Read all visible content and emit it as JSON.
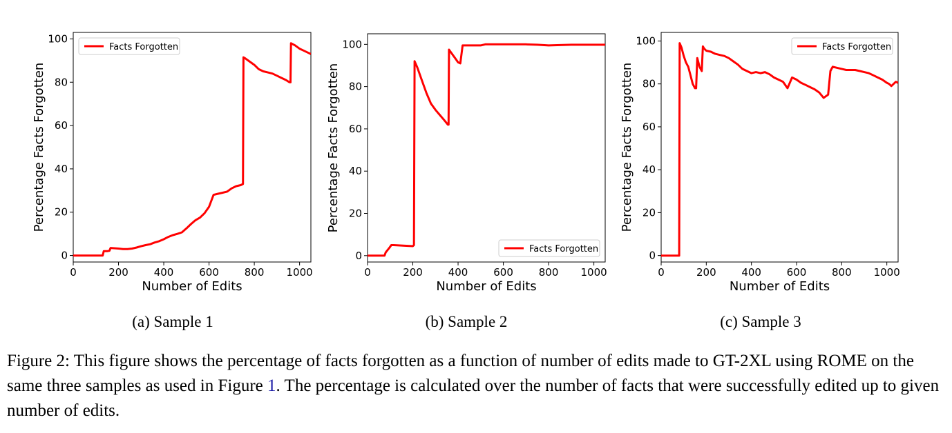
{
  "chart_data": [
    {
      "type": "line",
      "subcaption": "(a) Sample 1",
      "xlabel": "Number of Edits",
      "ylabel": "Percentage Facts Forgotten",
      "xlim": [
        0,
        1050
      ],
      "ylim": [
        -3,
        103
      ],
      "xticks": [
        0,
        200,
        400,
        600,
        800,
        1000
      ],
      "yticks": [
        0,
        20,
        40,
        60,
        80,
        100
      ],
      "legend_position": "top-left",
      "series": [
        {
          "name": "Facts Forgotten",
          "color": "#ff0000",
          "x": [
            0,
            130,
            135,
            150,
            160,
            165,
            200,
            220,
            240,
            260,
            280,
            300,
            320,
            340,
            360,
            380,
            400,
            420,
            440,
            460,
            480,
            500,
            520,
            540,
            560,
            580,
            600,
            620,
            640,
            660,
            680,
            700,
            720,
            740,
            750,
            752,
            760,
            780,
            800,
            820,
            840,
            860,
            880,
            900,
            920,
            940,
            955,
            960,
            962,
            980,
            1000,
            1020,
            1040,
            1050
          ],
          "y": [
            0,
            0,
            2,
            2,
            2.2,
            3.5,
            3.2,
            3.0,
            3.0,
            3.2,
            3.7,
            4.3,
            4.8,
            5.2,
            6.0,
            6.6,
            7.5,
            8.6,
            9.4,
            10.0,
            10.7,
            12.5,
            14.5,
            16.3,
            17.5,
            19.5,
            22.5,
            28,
            28.5,
            29,
            29.5,
            31,
            32,
            32.5,
            33,
            91.5,
            91,
            89.5,
            88,
            86,
            85,
            84.5,
            84,
            83,
            82,
            81,
            80,
            80,
            98,
            97,
            95.5,
            94.5,
            93.5,
            93
          ]
        }
      ]
    },
    {
      "type": "line",
      "subcaption": "(b) Sample 2",
      "xlabel": "Number of Edits",
      "ylabel": "Percentage Facts Forgotten",
      "xlim": [
        0,
        1050
      ],
      "ylim": [
        -3,
        105
      ],
      "xticks": [
        0,
        200,
        400,
        600,
        800,
        1000
      ],
      "yticks": [
        0,
        20,
        40,
        60,
        80,
        100
      ],
      "legend_position": "lower-right",
      "series": [
        {
          "name": "Facts Forgotten",
          "color": "#ff0000",
          "x": [
            0,
            75,
            80,
            95,
            105,
            115,
            200,
            205,
            208,
            220,
            240,
            260,
            280,
            300,
            320,
            340,
            355,
            358,
            360,
            370,
            390,
            400,
            410,
            420,
            450,
            480,
            500,
            520,
            600,
            700,
            750,
            800,
            900,
            1000,
            1050
          ],
          "y": [
            0,
            0,
            1.5,
            3.5,
            5,
            5,
            4.5,
            5,
            92,
            89,
            83,
            77,
            72,
            69,
            66.5,
            64,
            62,
            62,
            97.5,
            96,
            93,
            91.5,
            91,
            99.5,
            99.5,
            99.5,
            99.5,
            100,
            100,
            100,
            99.8,
            99.5,
            99.8,
            99.8,
            99.8
          ]
        }
      ]
    },
    {
      "type": "line",
      "subcaption": "(c) Sample 3",
      "xlabel": "Number of Edits",
      "ylabel": "Percentage Facts Forgotten",
      "xlim": [
        0,
        1050
      ],
      "ylim": [
        -3,
        104
      ],
      "xticks": [
        0,
        200,
        400,
        600,
        800,
        1000
      ],
      "yticks": [
        0,
        20,
        40,
        60,
        80,
        100
      ],
      "legend_position": "top-right",
      "series": [
        {
          "name": "Facts Forgotten",
          "color": "#ff0000",
          "x": [
            0,
            80,
            82,
            90,
            100,
            110,
            120,
            130,
            140,
            150,
            155,
            160,
            170,
            180,
            185,
            190,
            200,
            220,
            240,
            260,
            280,
            300,
            320,
            340,
            360,
            380,
            400,
            420,
            440,
            460,
            480,
            500,
            520,
            540,
            560,
            580,
            600,
            620,
            640,
            660,
            680,
            700,
            720,
            740,
            750,
            760,
            780,
            800,
            820,
            840,
            860,
            880,
            900,
            920,
            940,
            960,
            980,
            1000,
            1010,
            1020,
            1040,
            1050
          ],
          "y": [
            0,
            0,
            99,
            97,
            93,
            90,
            88,
            84,
            80,
            78,
            78,
            92,
            88,
            86,
            97.5,
            96.5,
            95.5,
            95,
            94,
            93.5,
            93,
            92,
            90.5,
            89,
            87,
            86,
            85,
            85.5,
            85,
            85.5,
            84.5,
            83,
            82,
            81,
            78,
            83,
            82,
            80.5,
            79.5,
            78.5,
            77.5,
            76,
            73.5,
            75,
            86,
            88,
            87.5,
            87,
            86.5,
            86.5,
            86.5,
            86,
            85.5,
            85,
            84,
            83,
            82,
            80.5,
            80,
            79,
            81,
            80.5
          ]
        }
      ]
    }
  ],
  "caption": {
    "prefix": "Figure 2: This figure shows the percentage of facts forgotten as a function of number of edits made to GT-2XL using ROME on the same three samples as used in Figure ",
    "ref": "1",
    "suffix": ". The percentage is calculated over the number of facts that were successfully edited up to given number of edits."
  }
}
